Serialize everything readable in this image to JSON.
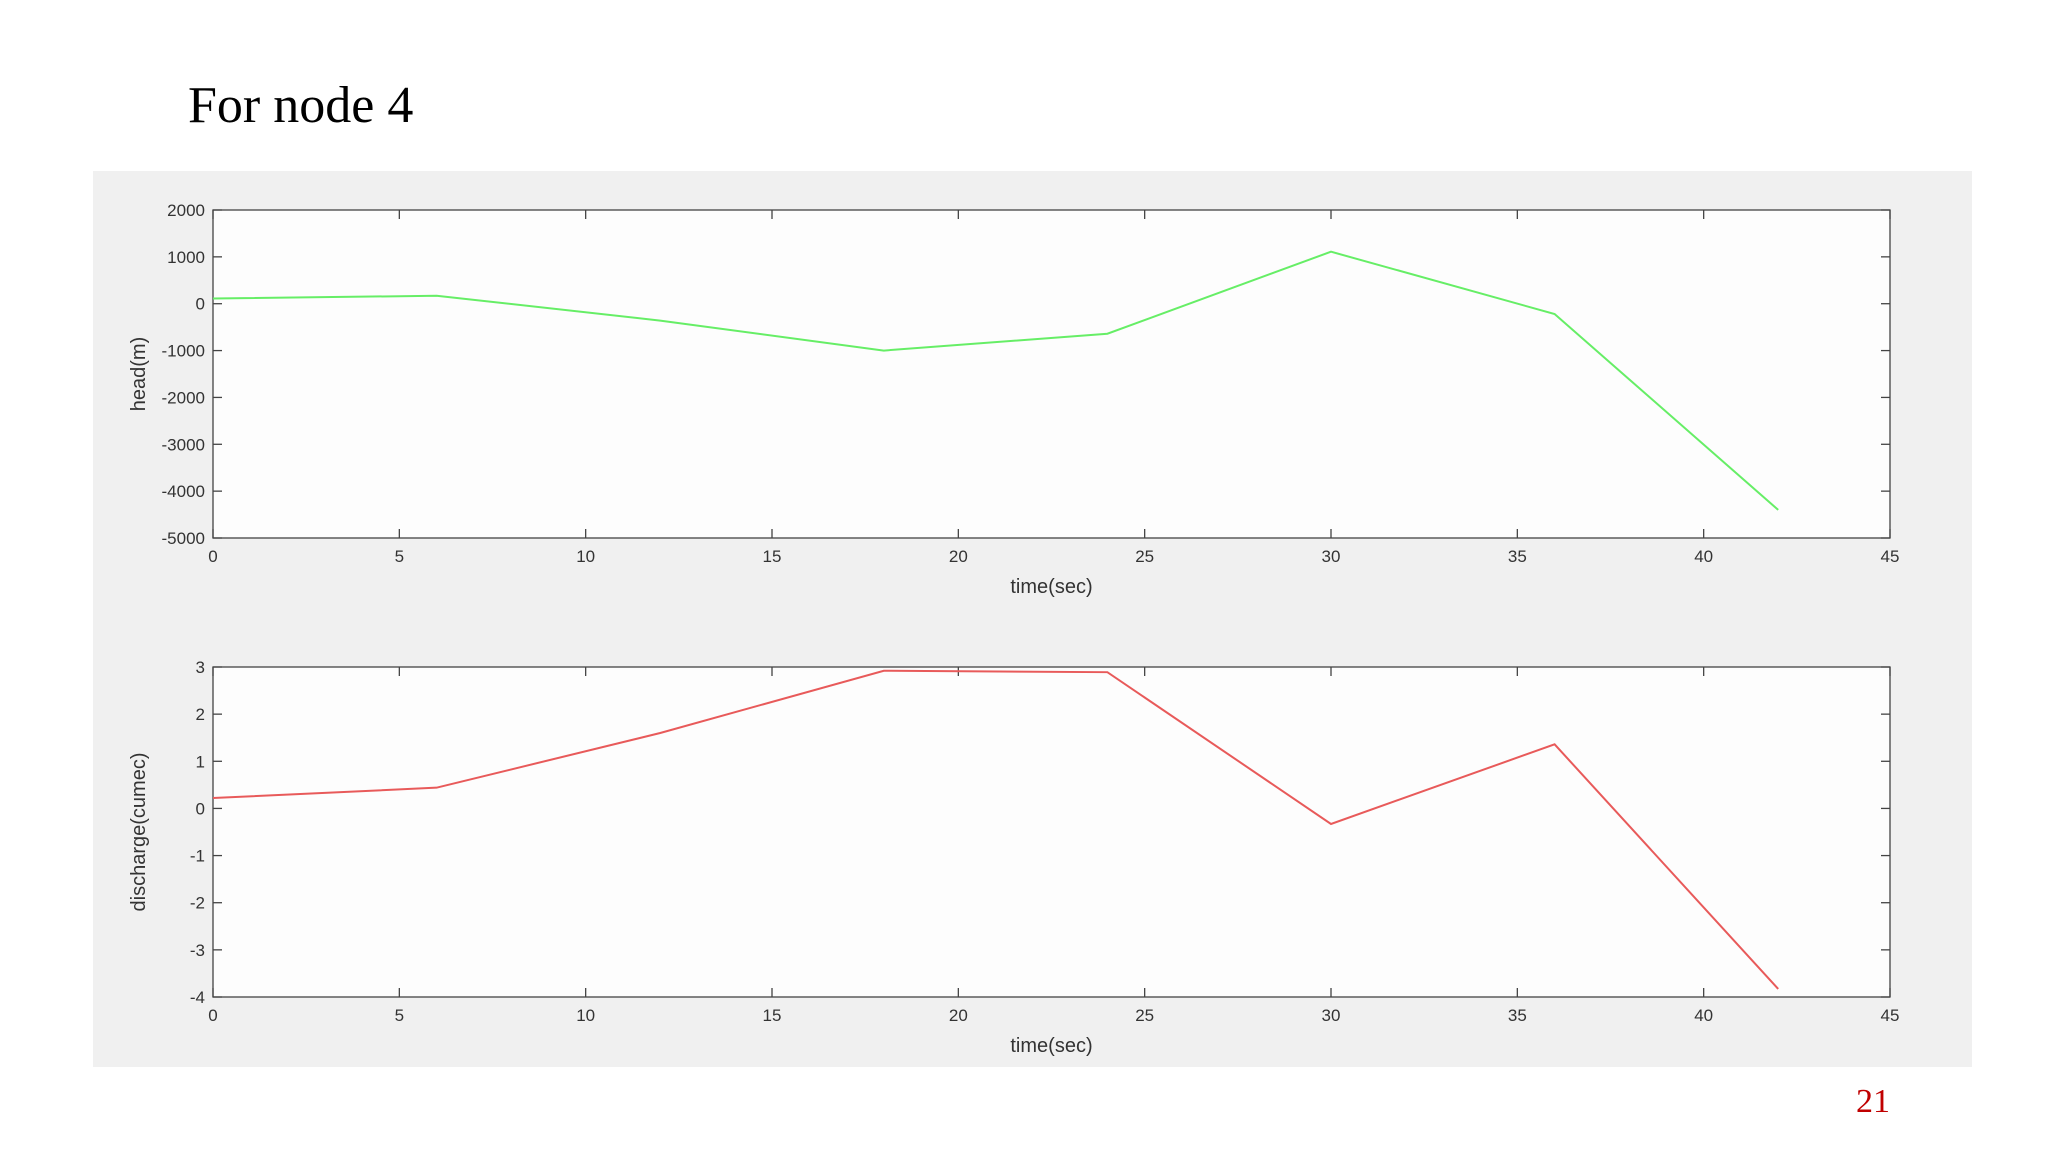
{
  "title": "For node 4",
  "page_number": "21",
  "chart_data": [
    {
      "type": "line",
      "xlabel": "time(sec)",
      "ylabel": "head(m)",
      "x": [
        0,
        6,
        12,
        18,
        24,
        30,
        36,
        42
      ],
      "values": [
        110,
        170,
        -360,
        -1000,
        -640,
        1110,
        -220,
        -4400
      ],
      "color": "#66ee66",
      "xlim": [
        0,
        45
      ],
      "xticks": [
        0,
        5,
        10,
        15,
        20,
        25,
        30,
        35,
        40,
        45
      ],
      "ylim": [
        -5000,
        2000
      ],
      "yticks": [
        -5000,
        -4000,
        -3000,
        -2000,
        -1000,
        0,
        1000,
        2000
      ]
    },
    {
      "type": "line",
      "xlabel": "time(sec)",
      "ylabel": "discharge(cumec)",
      "x": [
        0,
        6,
        12,
        18,
        24,
        30,
        36,
        42
      ],
      "values": [
        0.22,
        0.44,
        1.6,
        2.92,
        2.89,
        -0.33,
        1.36,
        -3.83
      ],
      "color": "#e85a5a",
      "xlim": [
        0,
        45
      ],
      "xticks": [
        0,
        5,
        10,
        15,
        20,
        25,
        30,
        35,
        40,
        45
      ],
      "ylim": [
        -4,
        3
      ],
      "yticks": [
        -4,
        -3,
        -2,
        -1,
        0,
        1,
        2,
        3
      ]
    }
  ]
}
